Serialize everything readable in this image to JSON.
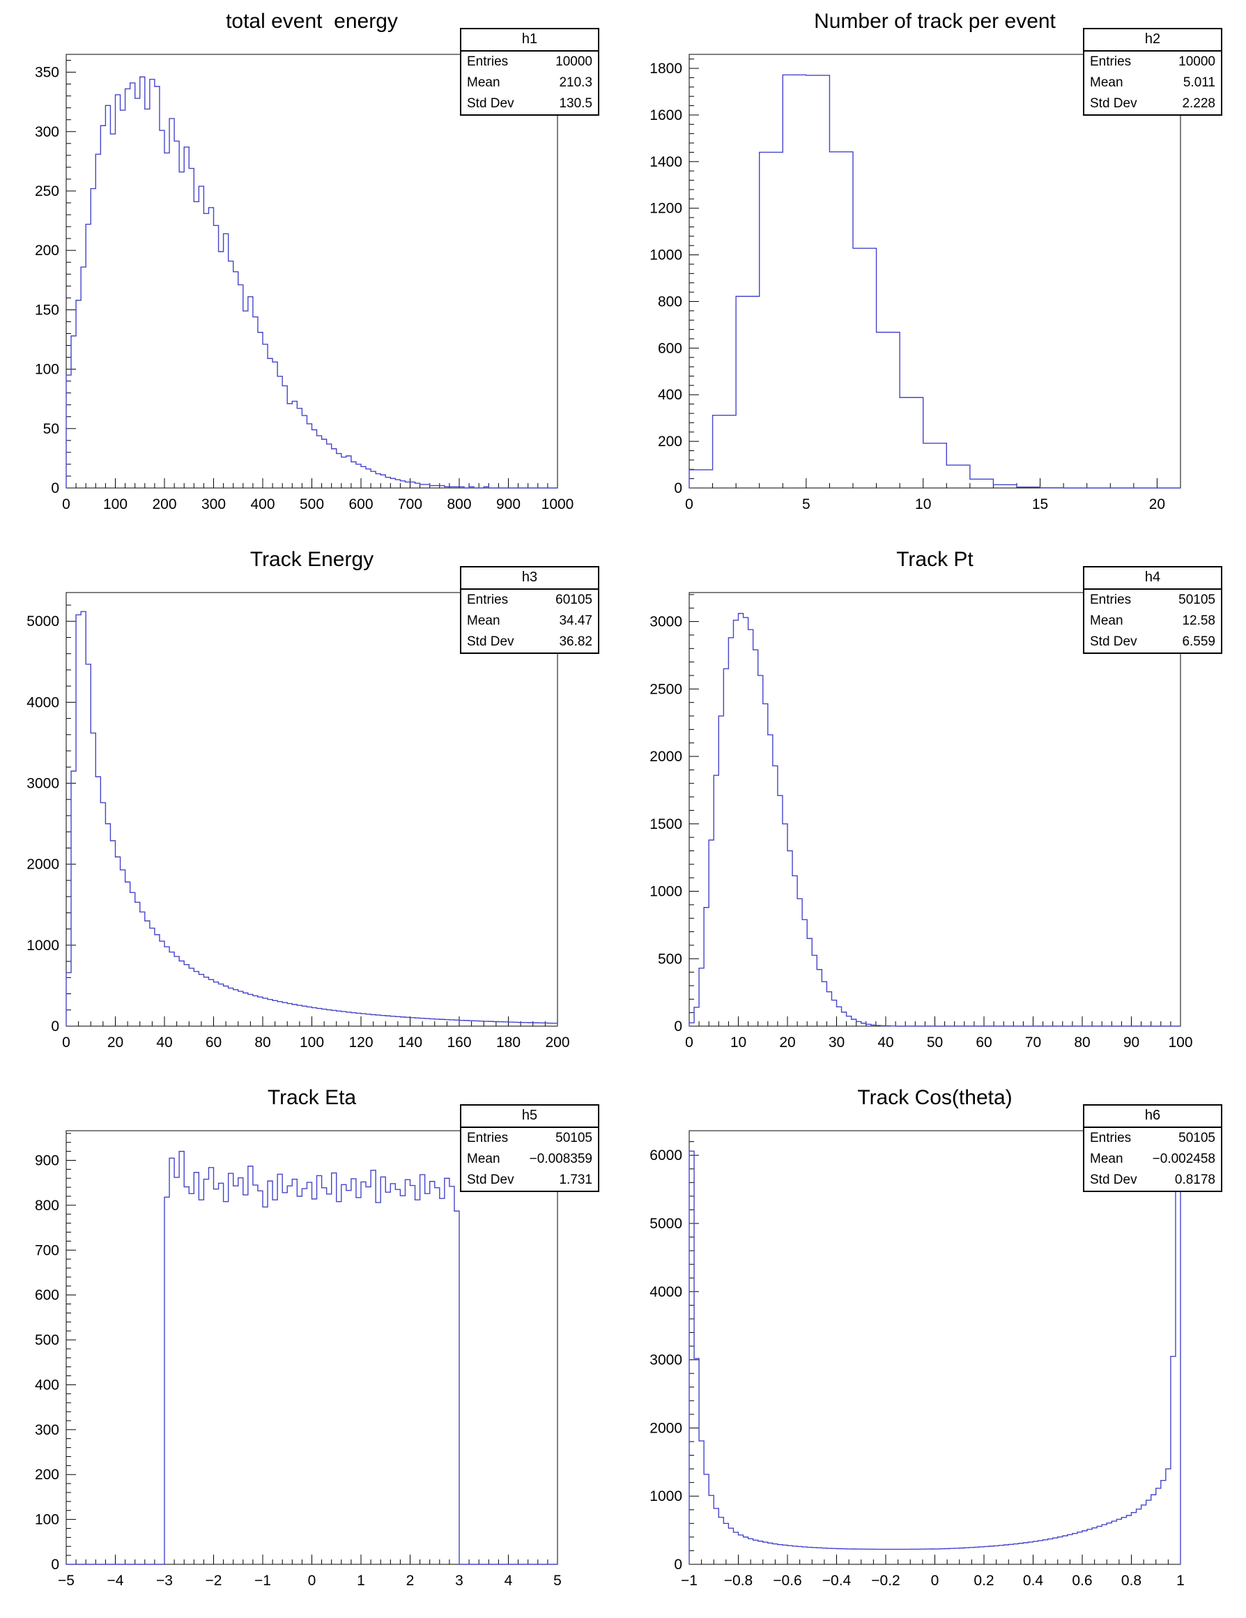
{
  "canvas": {
    "background": "#ffffff",
    "line_color": "#4444cc",
    "axis_color": "#000000",
    "text_color": "#000000"
  },
  "stats_labels": {
    "entries": "Entries",
    "mean": "Mean",
    "std": "Std Dev"
  },
  "chart_data": [
    {
      "type": "bar",
      "render_style": "step-histogram",
      "title": "total event  energy",
      "stats": {
        "name": "h1",
        "entries": "10000",
        "mean": "210.3",
        "std_dev": "130.5"
      },
      "x_min": 0,
      "x_max": 1000,
      "xticks": [
        0,
        100,
        200,
        300,
        400,
        500,
        600,
        700,
        800,
        900,
        1000
      ],
      "yticks": [
        0,
        50,
        100,
        150,
        200,
        250,
        300,
        350
      ],
      "ylim": [
        0,
        365
      ],
      "x_minor": 5,
      "y_minor": 5,
      "xlabel": "",
      "ylabel": "",
      "grid": false,
      "legend": false,
      "values": [
        95,
        128,
        158,
        186,
        222,
        252,
        281,
        305,
        322,
        298,
        331,
        318,
        336,
        341,
        328,
        346,
        319,
        344,
        338,
        301,
        282,
        311,
        292,
        266,
        287,
        269,
        241,
        254,
        231,
        236,
        221,
        199,
        214,
        191,
        182,
        171,
        149,
        161,
        144,
        131,
        121,
        109,
        106,
        94,
        86,
        71,
        73,
        67,
        61,
        54,
        49,
        44,
        41,
        37,
        33,
        29,
        26,
        27,
        22,
        20,
        18,
        16,
        14,
        12,
        11,
        9,
        8,
        7,
        6,
        5,
        5,
        4,
        3,
        3,
        2,
        2,
        2,
        1,
        1,
        1,
        1,
        0,
        1,
        0,
        0,
        1,
        0,
        0,
        0,
        0,
        0,
        0,
        0,
        0,
        0,
        0,
        0,
        0,
        0,
        0
      ]
    },
    {
      "type": "bar",
      "render_style": "step-histogram",
      "title": "Number of track per event",
      "stats": {
        "name": "h2",
        "entries": "10000",
        "mean": "5.011",
        "std_dev": "2.228"
      },
      "x_min": 0,
      "x_max": 21,
      "xticks": [
        0,
        5,
        10,
        15,
        20
      ],
      "yticks": [
        0,
        200,
        400,
        600,
        800,
        1000,
        1200,
        1400,
        1600,
        1800
      ],
      "ylim": [
        0,
        1860
      ],
      "x_minor": 5,
      "y_minor": 5,
      "xlabel": "",
      "ylabel": "",
      "grid": false,
      "legend": false,
      "values": [
        78,
        312,
        822,
        1440,
        1772,
        1770,
        1442,
        1028,
        668,
        388,
        192,
        98,
        38,
        14,
        4,
        1,
        0,
        0,
        0,
        0,
        0
      ]
    },
    {
      "type": "bar",
      "render_style": "step-histogram",
      "title": "Track Energy",
      "stats": {
        "name": "h3",
        "entries": "60105",
        "mean": "34.47",
        "std_dev": "36.82"
      },
      "x_min": 0,
      "x_max": 200,
      "xticks": [
        0,
        20,
        40,
        60,
        80,
        100,
        120,
        140,
        160,
        180,
        200
      ],
      "yticks": [
        0,
        1000,
        2000,
        3000,
        4000,
        5000
      ],
      "ylim": [
        0,
        5355
      ],
      "x_minor": 4,
      "y_minor": 5,
      "xlabel": "",
      "ylabel": "",
      "grid": false,
      "legend": false,
      "values": [
        660,
        3150,
        5080,
        5120,
        4470,
        3620,
        3080,
        2760,
        2500,
        2290,
        2090,
        1930,
        1780,
        1650,
        1530,
        1410,
        1300,
        1210,
        1130,
        1050,
        980,
        915,
        860,
        805,
        760,
        715,
        675,
        640,
        605,
        575,
        545,
        520,
        495,
        470,
        450,
        430,
        410,
        392,
        375,
        360,
        345,
        330,
        316,
        303,
        291,
        279,
        268,
        257,
        247,
        237,
        228,
        219,
        210,
        202,
        194,
        187,
        180,
        173,
        166,
        160,
        154,
        148,
        142,
        137,
        132,
        127,
        122,
        118,
        113,
        109,
        105,
        101,
        97,
        94,
        90,
        87,
        84,
        81,
        78,
        75,
        72,
        70,
        67,
        65,
        62,
        60,
        58,
        56,
        54,
        52,
        50,
        48,
        46,
        45,
        43,
        42,
        40,
        39,
        37,
        36
      ]
    },
    {
      "type": "bar",
      "render_style": "step-histogram",
      "title": "Track Pt",
      "stats": {
        "name": "h4",
        "entries": "50105",
        "mean": "12.58",
        "std_dev": "6.559"
      },
      "x_min": 0,
      "x_max": 100,
      "xticks": [
        0,
        10,
        20,
        30,
        40,
        50,
        60,
        70,
        80,
        90,
        100
      ],
      "yticks": [
        0,
        500,
        1000,
        1500,
        2000,
        2500,
        3000
      ],
      "ylim": [
        0,
        3215
      ],
      "x_minor": 5,
      "y_minor": 5,
      "xlabel": "",
      "ylabel": "",
      "grid": false,
      "legend": false,
      "values": [
        25,
        140,
        430,
        880,
        1380,
        1860,
        2300,
        2650,
        2880,
        3010,
        3060,
        3030,
        2940,
        2790,
        2600,
        2390,
        2160,
        1930,
        1710,
        1500,
        1300,
        1115,
        945,
        790,
        650,
        525,
        420,
        330,
        255,
        193,
        143,
        104,
        74,
        51,
        34,
        22,
        14,
        8,
        5,
        3,
        2,
        1,
        0,
        0,
        0,
        0,
        0,
        0,
        0,
        0,
        0,
        0,
        0,
        0,
        0,
        0,
        0,
        0,
        0,
        0,
        0,
        0,
        0,
        0,
        0,
        0,
        0,
        0,
        0,
        0,
        0,
        0,
        0,
        0,
        0,
        0,
        0,
        0,
        0,
        0,
        0,
        0,
        0,
        0,
        0,
        0,
        0,
        0,
        0,
        0,
        0,
        0,
        0,
        0,
        0,
        0,
        0,
        0,
        0,
        0
      ]
    },
    {
      "type": "bar",
      "render_style": "step-histogram",
      "title": "Track Eta",
      "stats": {
        "name": "h5",
        "entries": "50105",
        "mean": "−0.008359",
        "std_dev": "1.731"
      },
      "x_min": -5,
      "x_max": 5,
      "xticks": [
        -5,
        -4,
        -3,
        -2,
        -1,
        0,
        1,
        2,
        3,
        4,
        5
      ],
      "yticks": [
        0,
        100,
        200,
        300,
        400,
        500,
        600,
        700,
        800,
        900
      ],
      "ylim": [
        0,
        966
      ],
      "x_minor": 5,
      "y_minor": 5,
      "xlabel": "",
      "ylabel": "",
      "grid": false,
      "legend": false,
      "values": [
        0,
        0,
        0,
        0,
        0,
        0,
        0,
        0,
        0,
        0,
        0,
        0,
        0,
        0,
        0,
        0,
        0,
        0,
        0,
        0,
        818,
        905,
        862,
        920,
        841,
        826,
        873,
        812,
        858,
        884,
        836,
        849,
        808,
        871,
        843,
        861,
        823,
        887,
        845,
        832,
        796,
        854,
        812,
        869,
        828,
        843,
        858,
        820,
        837,
        851,
        814,
        866,
        839,
        825,
        872,
        808,
        846,
        833,
        859,
        817,
        852,
        841,
        878,
        806,
        863,
        829,
        848,
        835,
        821,
        857,
        844,
        812,
        868,
        826,
        853,
        839,
        815,
        860,
        842,
        787,
        0,
        0,
        0,
        0,
        0,
        0,
        0,
        0,
        0,
        0,
        0,
        0,
        0,
        0,
        0,
        0,
        0,
        0,
        0,
        0
      ]
    },
    {
      "type": "bar",
      "render_style": "step-histogram",
      "title": "Track Cos(theta)",
      "stats": {
        "name": "h6",
        "entries": "50105",
        "mean": "−0.002458",
        "std_dev": "0.8178"
      },
      "x_min": -1,
      "x_max": 1,
      "xticks": [
        -1,
        -0.8,
        -0.6,
        -0.4,
        -0.2,
        0,
        0.2,
        0.4,
        0.6,
        0.8,
        1
      ],
      "yticks": [
        0,
        1000,
        2000,
        3000,
        4000,
        5000,
        6000
      ],
      "ylim": [
        0,
        6360
      ],
      "x_minor": 4,
      "y_minor": 5,
      "xlabel": "",
      "ylabel": "",
      "grid": false,
      "legend": false,
      "values": [
        6060,
        3020,
        1810,
        1320,
        1010,
        820,
        690,
        600,
        530,
        470,
        430,
        400,
        375,
        355,
        340,
        325,
        312,
        300,
        290,
        282,
        274,
        267,
        261,
        255,
        250,
        246,
        242,
        238,
        235,
        232,
        230,
        228,
        226,
        225,
        224,
        223,
        222,
        222,
        221,
        221,
        220,
        220,
        220,
        221,
        221,
        222,
        222,
        223,
        224,
        225,
        226,
        228,
        230,
        233,
        236,
        239,
        243,
        247,
        251,
        256,
        261,
        266,
        272,
        278,
        285,
        292,
        300,
        308,
        317,
        327,
        337,
        348,
        360,
        373,
        387,
        402,
        418,
        435,
        453,
        472,
        492,
        513,
        535,
        558,
        582,
        607,
        633,
        660,
        688,
        717,
        760,
        810,
        870,
        940,
        1020,
        1115,
        1230,
        1400,
        3050,
        5480
      ]
    }
  ]
}
